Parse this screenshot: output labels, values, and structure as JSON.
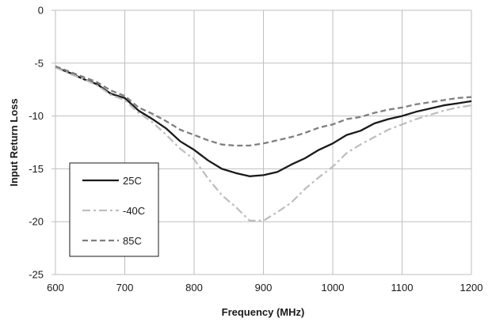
{
  "chart_data": {
    "type": "line",
    "title": "",
    "xlabel": "Frequency (MHz)",
    "ylabel": "Input Return Loss",
    "xlim": [
      600,
      1200
    ],
    "ylim": [
      -25,
      0
    ],
    "x_ticks": [
      600,
      700,
      800,
      900,
      1000,
      1100,
      1200
    ],
    "y_ticks": [
      0,
      -5,
      -10,
      -15,
      -20,
      -25
    ],
    "x_tick_labels": [
      "600",
      "700",
      "800",
      "900",
      "1000",
      "1100",
      "1200"
    ],
    "y_tick_labels": [
      "0",
      "-5",
      "-10",
      "-15",
      "-20",
      "-25"
    ],
    "grid": true,
    "legend_position": "bottom-left",
    "series": [
      {
        "name": "25C",
        "color": "#1a1a1a",
        "dash": "solid",
        "points": [
          [
            600,
            -5.4
          ],
          [
            620,
            -5.9
          ],
          [
            640,
            -6.5
          ],
          [
            660,
            -7.0
          ],
          [
            680,
            -7.9
          ],
          [
            700,
            -8.3
          ],
          [
            720,
            -9.5
          ],
          [
            740,
            -10.3
          ],
          [
            760,
            -11.2
          ],
          [
            780,
            -12.4
          ],
          [
            800,
            -13.2
          ],
          [
            820,
            -14.2
          ],
          [
            840,
            -15.0
          ],
          [
            860,
            -15.4
          ],
          [
            880,
            -15.7
          ],
          [
            900,
            -15.6
          ],
          [
            920,
            -15.3
          ],
          [
            940,
            -14.6
          ],
          [
            960,
            -14.0
          ],
          [
            980,
            -13.2
          ],
          [
            1000,
            -12.6
          ],
          [
            1020,
            -11.8
          ],
          [
            1040,
            -11.4
          ],
          [
            1060,
            -10.7
          ],
          [
            1080,
            -10.3
          ],
          [
            1100,
            -10.0
          ],
          [
            1120,
            -9.6
          ],
          [
            1140,
            -9.3
          ],
          [
            1160,
            -9.0
          ],
          [
            1180,
            -8.8
          ],
          [
            1200,
            -8.6
          ]
        ]
      },
      {
        "name": "-40C",
        "color": "#bfbfbf",
        "dash": "dash-dot",
        "points": [
          [
            600,
            -5.4
          ],
          [
            620,
            -6.0
          ],
          [
            640,
            -6.5
          ],
          [
            660,
            -7.1
          ],
          [
            680,
            -8.0
          ],
          [
            700,
            -8.5
          ],
          [
            720,
            -9.7
          ],
          [
            740,
            -10.6
          ],
          [
            760,
            -11.8
          ],
          [
            780,
            -13.1
          ],
          [
            800,
            -14.1
          ],
          [
            820,
            -15.9
          ],
          [
            840,
            -17.5
          ],
          [
            860,
            -18.6
          ],
          [
            880,
            -19.9
          ],
          [
            900,
            -19.9
          ],
          [
            920,
            -19.1
          ],
          [
            940,
            -18.2
          ],
          [
            960,
            -16.9
          ],
          [
            980,
            -15.8
          ],
          [
            1000,
            -14.8
          ],
          [
            1020,
            -13.5
          ],
          [
            1040,
            -12.7
          ],
          [
            1060,
            -12.0
          ],
          [
            1080,
            -11.3
          ],
          [
            1100,
            -10.8
          ],
          [
            1120,
            -10.3
          ],
          [
            1140,
            -9.9
          ],
          [
            1160,
            -9.5
          ],
          [
            1180,
            -9.2
          ],
          [
            1200,
            -9.0
          ]
        ]
      },
      {
        "name": "85C",
        "color": "#7f7f7f",
        "dash": "dashed",
        "points": [
          [
            600,
            -5.3
          ],
          [
            620,
            -5.8
          ],
          [
            640,
            -6.3
          ],
          [
            660,
            -6.8
          ],
          [
            680,
            -7.6
          ],
          [
            700,
            -8.1
          ],
          [
            720,
            -9.2
          ],
          [
            740,
            -9.8
          ],
          [
            760,
            -10.5
          ],
          [
            780,
            -11.3
          ],
          [
            800,
            -11.8
          ],
          [
            820,
            -12.3
          ],
          [
            840,
            -12.7
          ],
          [
            860,
            -12.8
          ],
          [
            880,
            -12.8
          ],
          [
            900,
            -12.6
          ],
          [
            920,
            -12.3
          ],
          [
            940,
            -12.0
          ],
          [
            960,
            -11.6
          ],
          [
            980,
            -11.1
          ],
          [
            1000,
            -10.8
          ],
          [
            1020,
            -10.3
          ],
          [
            1040,
            -10.1
          ],
          [
            1060,
            -9.7
          ],
          [
            1080,
            -9.4
          ],
          [
            1100,
            -9.2
          ],
          [
            1120,
            -8.9
          ],
          [
            1140,
            -8.7
          ],
          [
            1160,
            -8.5
          ],
          [
            1180,
            -8.3
          ],
          [
            1200,
            -8.2
          ]
        ]
      }
    ]
  }
}
